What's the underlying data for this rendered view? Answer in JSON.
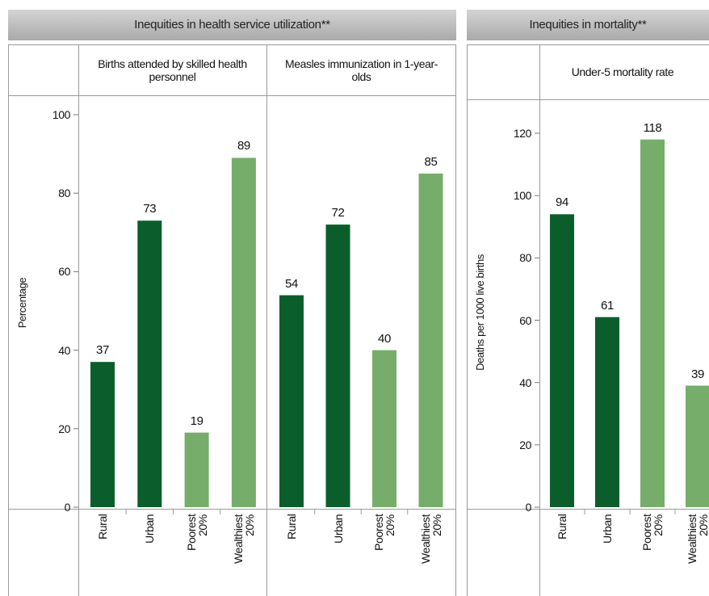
{
  "panels": [
    {
      "title": "Inequities in health service utilization**"
    },
    {
      "title": "Inequities in mortality**"
    }
  ],
  "chart_data": [
    {
      "type": "bar",
      "title": "Births attended by skilled health personnel",
      "ylabel": "Percentage",
      "categories": [
        "Rural",
        "Urban",
        "Poorest 20%",
        "Wealthiest 20%"
      ],
      "values": [
        37,
        73,
        19,
        89
      ],
      "colors": [
        "#0b5e2c",
        "#0b5e2c",
        "#76ad6a",
        "#76ad6a"
      ],
      "ylim": [
        0,
        100
      ],
      "yticks": [
        0,
        20,
        40,
        60,
        80,
        100
      ]
    },
    {
      "type": "bar",
      "title": "Measles immunization in 1-year-olds",
      "categories": [
        "Rural",
        "Urban",
        "Poorest 20%",
        "Wealthiest 20%"
      ],
      "values": [
        54,
        72,
        40,
        85
      ],
      "colors": [
        "#0b5e2c",
        "#0b5e2c",
        "#76ad6a",
        "#76ad6a"
      ],
      "ylim": [
        0,
        100
      ]
    },
    {
      "type": "bar",
      "title": "Under-5 mortality rate",
      "ylabel": "Deaths per 1000 live births",
      "categories": [
        "Rural",
        "Urban",
        "Poorest 20%",
        "Wealthiest 20%"
      ],
      "values": [
        94,
        61,
        118,
        39
      ],
      "colors": [
        "#0b5e2c",
        "#0b5e2c",
        "#76ad6a",
        "#76ad6a"
      ],
      "ylim": [
        0,
        120
      ],
      "yticks": [
        0,
        20,
        40,
        60,
        80,
        100,
        120
      ]
    }
  ]
}
